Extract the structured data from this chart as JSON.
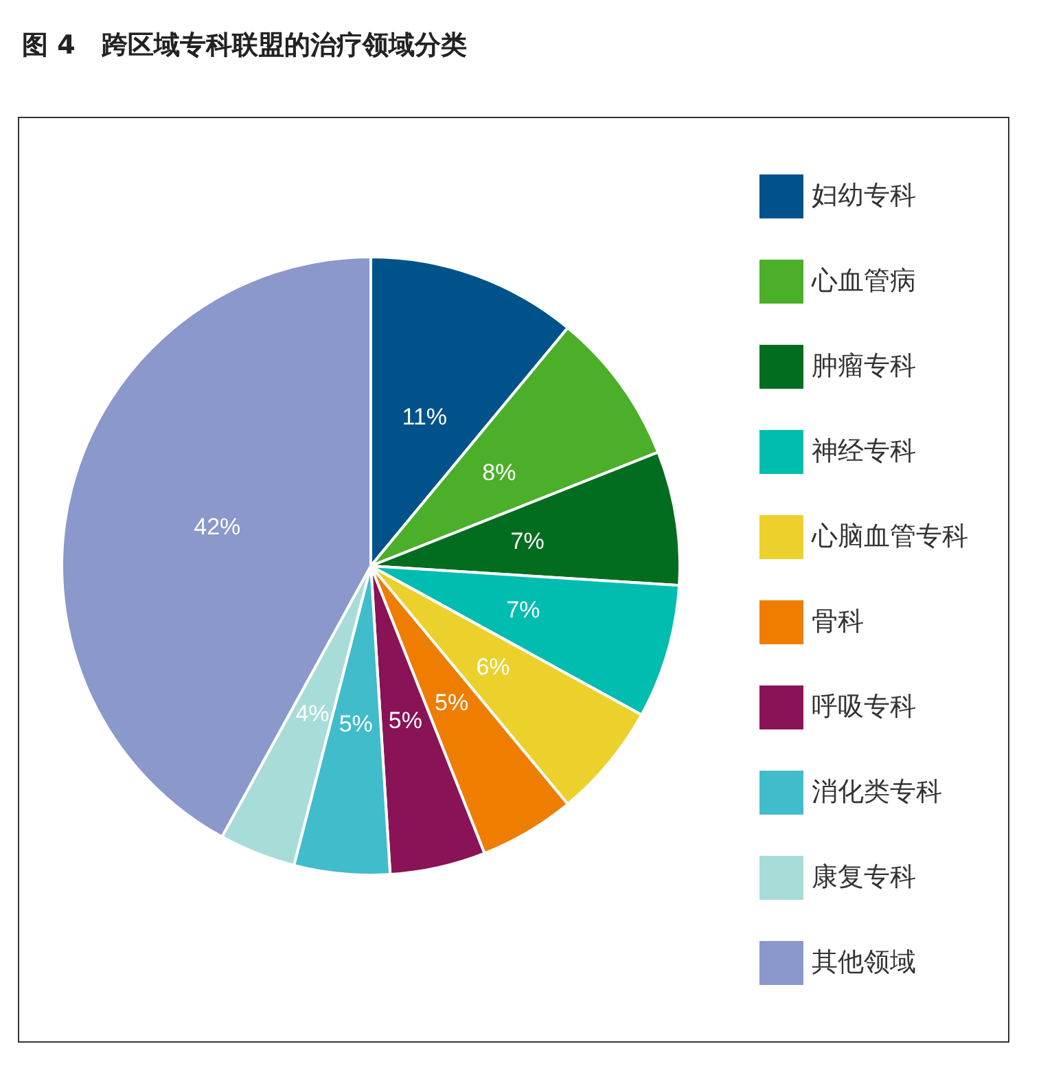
{
  "chart_data": {
    "type": "pie",
    "title": "图 4　跨区域专科联盟的治疗领域分类",
    "categories": [
      "妇幼专科",
      "心血管病",
      "肿瘤专科",
      "神经专科",
      "心脑血管专科",
      "骨科",
      "呼吸专科",
      "消化类专科",
      "康复专科",
      "其他领域"
    ],
    "values": [
      11,
      8,
      7,
      7,
      6,
      5,
      5,
      5,
      4,
      42
    ],
    "colors": [
      "#00528a",
      "#4caf2a",
      "#036d1f",
      "#00bdb0",
      "#ecd12c",
      "#ee7d00",
      "#8a1257",
      "#40bccb",
      "#a8dcd9",
      "#8a98cb"
    ],
    "value_labels": [
      "11%",
      "8%",
      "7%",
      "7%",
      "6%",
      "5%",
      "5%",
      "5%",
      "4%",
      "42%"
    ],
    "legend": "right"
  }
}
